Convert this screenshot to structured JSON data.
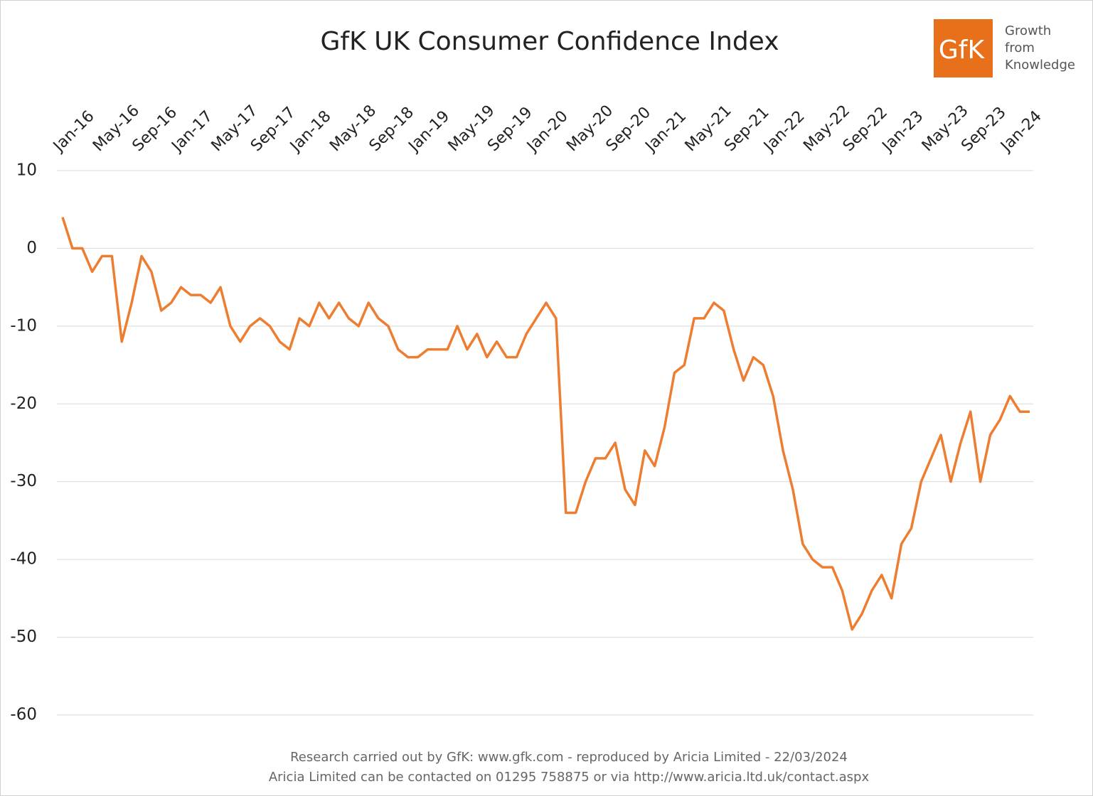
{
  "chart_data": {
    "type": "line",
    "title": "GfK UK Consumer Confidence Index",
    "logo": {
      "mark": "GfK",
      "tagline": [
        "Growth",
        "from",
        "Knowledge"
      ]
    },
    "footnotes": [
      "Research carried out by GfK: www.gfk.com - reproduced by Aricia Limited - 22/03/2024",
      "Aricia Limited can be contacted on 01295 758875 or via http://www.aricia.ltd.uk/contact.aspx"
    ],
    "categories": [
      "Jan-16",
      null,
      null,
      null,
      "May-16",
      null,
      null,
      null,
      "Sep-16",
      null,
      null,
      null,
      "Jan-17",
      null,
      null,
      null,
      "May-17",
      null,
      null,
      null,
      "Sep-17",
      null,
      null,
      null,
      "Jan-18",
      null,
      null,
      null,
      "May-18",
      null,
      null,
      null,
      "Sep-18",
      null,
      null,
      null,
      "Jan-19",
      null,
      null,
      null,
      "May-19",
      null,
      null,
      null,
      "Sep-19",
      null,
      null,
      null,
      "Jan-20",
      null,
      null,
      null,
      "May-20",
      null,
      null,
      null,
      "Sep-20",
      null,
      null,
      null,
      "Jan-21",
      null,
      null,
      null,
      "May-21",
      null,
      null,
      null,
      "Sep-21",
      null,
      null,
      null,
      "Jan-22",
      null,
      null,
      null,
      "May-22",
      null,
      null,
      null,
      "Sep-22",
      null,
      null,
      null,
      "Jan-23",
      null,
      null,
      null,
      "May-23",
      null,
      null,
      null,
      "Sep-23",
      null,
      null,
      null,
      "Jan-24",
      null,
      null
    ],
    "series": [
      {
        "name": "GfK UK Consumer Confidence Index",
        "color": "#ed7d31",
        "values": [
          4,
          0,
          0,
          -3,
          -1,
          -1,
          -12,
          -7,
          -1,
          -3,
          -8,
          -7,
          -5,
          -6,
          -6,
          -7,
          -5,
          -10,
          -12,
          -10,
          -9,
          -10,
          -12,
          -13,
          -9,
          -10,
          -7,
          -9,
          -7,
          -9,
          -10,
          -7,
          -9,
          -10,
          -13,
          -14,
          -14,
          -13,
          -13,
          -13,
          -10,
          -13,
          -11,
          -14,
          -12,
          -14,
          -14,
          -11,
          -9,
          -7,
          -9,
          -34,
          -34,
          -30,
          -27,
          -27,
          -25,
          -31,
          -33,
          -26,
          -28,
          -23,
          -16,
          -15,
          -9,
          -9,
          -7,
          -8,
          -13,
          -17,
          -14,
          -15,
          -19,
          -26,
          -31,
          -38,
          -40,
          -41,
          -41,
          -44,
          -49,
          -47,
          -44,
          -42,
          -45,
          -38,
          -36,
          -30,
          -27,
          -24,
          -30,
          -25,
          -21,
          -30,
          -24,
          -22,
          -19,
          -21,
          -21
        ]
      }
    ],
    "ylim": [
      -60,
      10
    ],
    "yticks": [
      10,
      0,
      -10,
      -20,
      -30,
      -40,
      -50,
      -60
    ],
    "grid": true
  }
}
